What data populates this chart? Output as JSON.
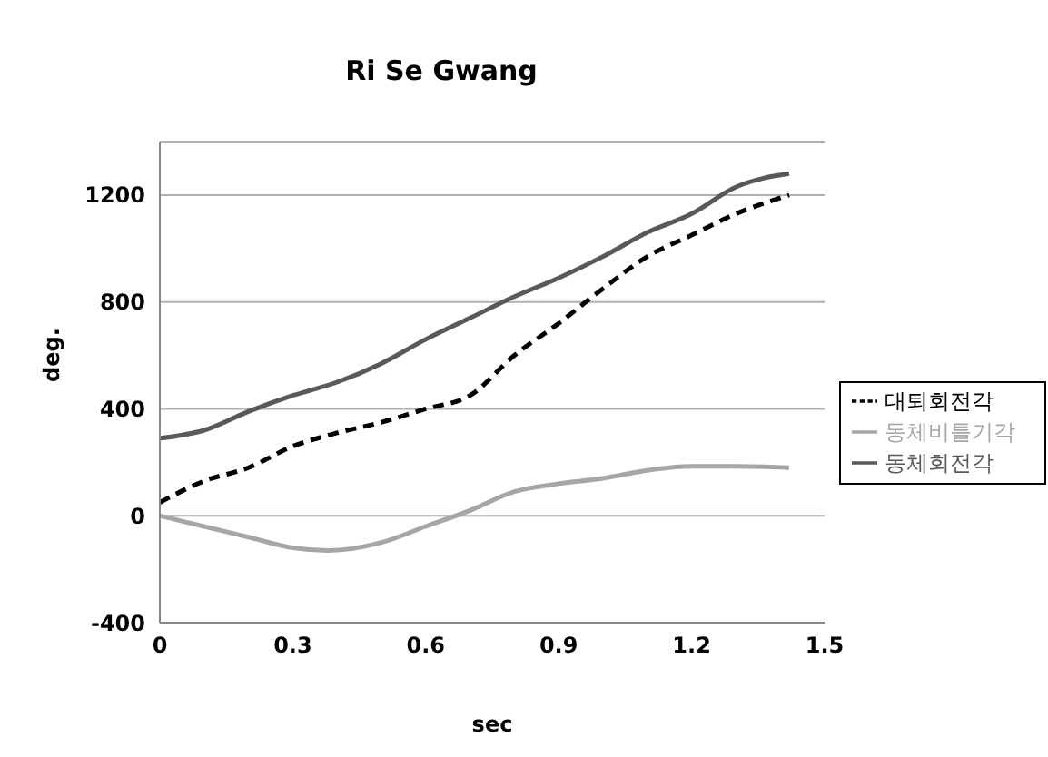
{
  "chart_data": {
    "type": "line",
    "title": "Ri Se Gwang",
    "xlabel": "sec",
    "ylabel": "deg.",
    "xlim": [
      0,
      1.5
    ],
    "xticks": [
      0,
      0.3,
      0.6,
      0.9,
      1.2,
      1.5
    ],
    "ylim": [
      -400,
      1400
    ],
    "yticks": [
      -400,
      0,
      400,
      800,
      1200
    ],
    "grid": "y",
    "legend": "right",
    "marker": "none",
    "series": [
      {
        "name": "대퇴회전각",
        "color": "#000000",
        "line_style": "dashed",
        "x": [
          0,
          0.1,
          0.2,
          0.3,
          0.4,
          0.5,
          0.6,
          0.7,
          0.8,
          0.9,
          1.0,
          1.1,
          1.2,
          1.3,
          1.42
        ],
        "values": [
          50,
          130,
          180,
          260,
          310,
          350,
          400,
          450,
          600,
          720,
          850,
          970,
          1050,
          1130,
          1200
        ]
      },
      {
        "name": "동체회전각",
        "color": "#595959",
        "line_style": "solid",
        "x": [
          0,
          0.1,
          0.2,
          0.3,
          0.4,
          0.5,
          0.6,
          0.7,
          0.8,
          0.9,
          1.0,
          1.1,
          1.2,
          1.3,
          1.42
        ],
        "values": [
          290,
          320,
          390,
          450,
          500,
          570,
          660,
          740,
          820,
          890,
          970,
          1060,
          1130,
          1230,
          1280
        ]
      },
      {
        "name": "동체비틀기각",
        "color": "#a6a6a6",
        "line_style": "solid",
        "x": [
          0,
          0.1,
          0.2,
          0.3,
          0.38,
          0.5,
          0.6,
          0.7,
          0.8,
          0.9,
          1.0,
          1.1,
          1.2,
          1.3,
          1.42
        ],
        "values": [
          0,
          -40,
          -80,
          -120,
          -130,
          -100,
          -40,
          20,
          90,
          120,
          140,
          170,
          185,
          185,
          180
        ]
      }
    ]
  }
}
